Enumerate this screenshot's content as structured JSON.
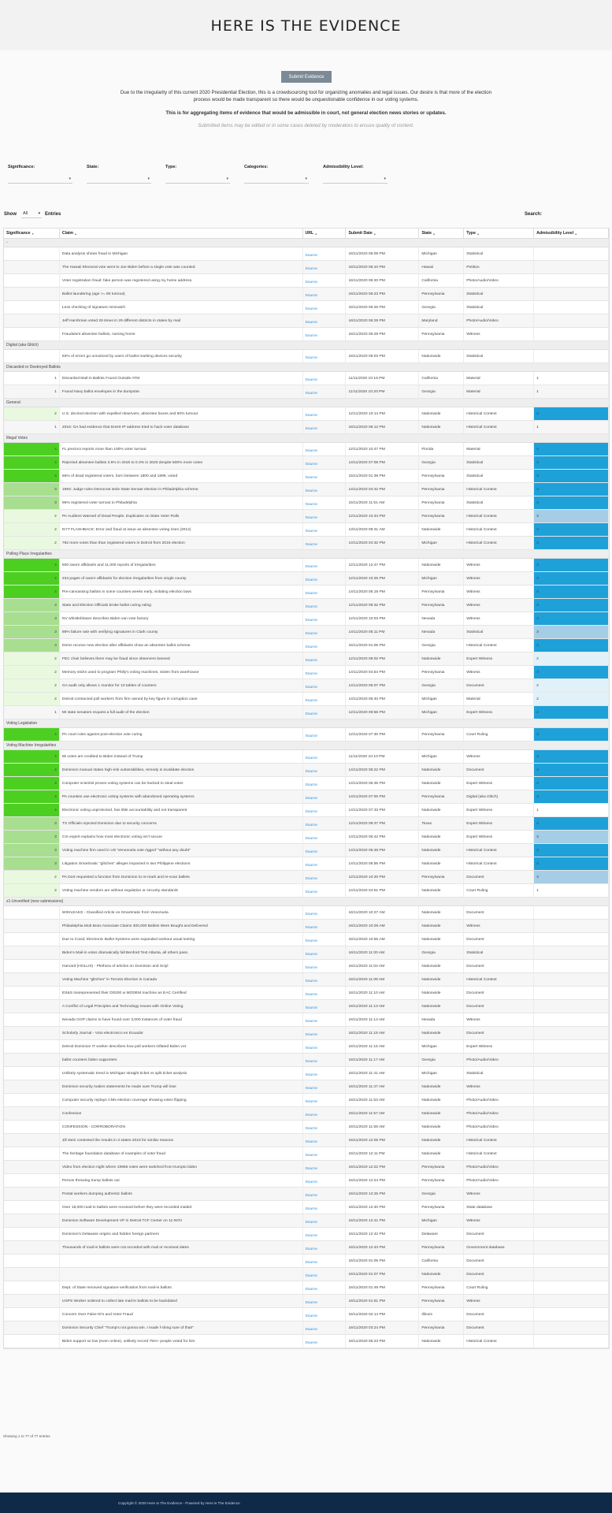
{
  "header": {
    "title": "HERE IS THE EVIDENCE",
    "submit_label": "Submit Evidence",
    "intro": "Due to the irregularity of this current 2020 Presidential Election, this is a crowdsourcing tool for organizing anomalies and legal issues. Our desire is that more of the election process would be made transparent so there would be unquestionable confidence in our voting systems.",
    "intro_bold": "This is for aggregating items of evidence that would be admissible in court, not general election news stories or updates.",
    "intro_italic": "Submitted items may be edited or in some cases deleted by moderators to ensure quality of content."
  },
  "filters": [
    {
      "label": "Significance:",
      "value": ""
    },
    {
      "label": "State:",
      "value": ""
    },
    {
      "label": "Type:",
      "value": ""
    },
    {
      "label": "Categories:",
      "value": ""
    },
    {
      "label": "Admissibility Level:",
      "value": ""
    }
  ],
  "controls": {
    "show": "Show",
    "show_value": "All",
    "entries": "Entries",
    "search": "Search:"
  },
  "columns": [
    "Significance",
    "Claim",
    "URL",
    "Submit Date",
    "State",
    "Type",
    "Admissibility Level"
  ],
  "source_label": "Source",
  "colors": {
    "level4": "#4dcf22",
    "level3": "#a8de8f",
    "level2": "#e9f9df",
    "admiss4": "#1ea0d8",
    "admiss3": "#a6cde6",
    "admiss2": "#e1f1fa"
  },
  "groups": [
    {
      "name": "-",
      "rows": [
        [
          "",
          "Data analysis shows fraud in Michigan",
          "16/11/2020 06:09 PM",
          "Michigan",
          "Statistical",
          ""
        ],
        [
          "",
          "The Hawaii Electoral vote went to Joe Biden before a single vote was counted.",
          "16/11/2020 06:10 PM",
          "Hawaii",
          "Petition",
          ""
        ],
        [
          "",
          "Voter registration fraud: fake person was registered using my home address.",
          "16/11/2020 06:20 PM",
          "California",
          "Photo/Audio/Video",
          ""
        ],
        [
          "",
          "Ballot laundering (age >= 90 turnout)",
          "16/11/2020 06:23 PM",
          "Pennsylvania",
          "Statistical",
          ""
        ],
        [
          "",
          "Less checking of signature mismatch",
          "16/11/2020 06:26 PM",
          "Georgia",
          "Statistical",
          ""
        ],
        [
          "",
          "Jeff Harshman voted 29 times in 29 different districts in states by mail",
          "16/11/2020 06:29 PM",
          "Maryland",
          "Photo/Audio/Video",
          ""
        ],
        [
          "",
          "Fraudulent absentee ballots, nursing home",
          "16/11/2020 06:29 PM",
          "Pennsylvania",
          "Witness",
          ""
        ]
      ]
    },
    {
      "name": "Digital (aka Glitch)",
      "rows": [
        [
          "",
          "93% of errors go unnoticed by users of ballot marking devices security",
          "16/11/2020 06:03 PM",
          "Nationwide",
          "Statistical",
          ""
        ]
      ]
    },
    {
      "name": "Discarded or Destroyed Ballots",
      "rows": [
        [
          "1",
          "Discarded Mail-in Ballots Found Outside ATM",
          "11/11/2020 10:16 PM",
          "California",
          "Material",
          "1"
        ],
        [
          "1",
          "Found Navy ballot envelopes in the dumpster.",
          "11/11/2020 10:20 PM",
          "Georgia",
          "Material",
          "1"
        ]
      ]
    },
    {
      "name": "General",
      "rows": [
        [
          "2",
          "U.S. decried election with expelled observers, absentee boxes and 90% turnout",
          "12/11/2020 10:14 PM",
          "Nationwide",
          "Historical Context",
          "4"
        ],
        [
          "1",
          "2016: GA had evidence that DoHS IP address tried to hack voter database",
          "16/11/2020 06:12 PM",
          "Nationwide",
          "Historical Context",
          "1"
        ]
      ]
    },
    {
      "name": "Illegal Votes",
      "rows": [
        [
          "4",
          "FL precinct reports more than 100% voter turnout",
          "12/11/2020 10:47 PM",
          "Florida",
          "Material",
          "4"
        ],
        [
          "4",
          "Rejected absentee ballots 3.5% in 2018 to 0.3% in 2020 despite 500% more votes",
          "14/11/2020 07:08 PM",
          "Georgia",
          "Statistical",
          "4"
        ],
        [
          "4",
          "66% of dead registered voters, born between 1800 and 1899, voted",
          "15/11/2020 01:38 PM",
          "Pennsylvania",
          "Statistical",
          "4"
        ],
        [
          "3",
          "1994: Judge rules Democrat stole State Senate election in Philadelphia scheme",
          "14/11/2020 04:42 PM",
          "Pennsylvania",
          "Historical Context",
          "4"
        ],
        [
          "3",
          "95% registered voter turnout in Philadelphia",
          "15/11/2020 11:51 AM",
          "Pennsylvania",
          "Statistical",
          "4"
        ],
        [
          "2",
          "PA Auditors Warned of Dead People, Duplicates on State Voter Rolls",
          "12/11/2020 10:34 PM",
          "Pennsylvania",
          "Historical Context",
          "3"
        ],
        [
          "2",
          "NYT FLASHBACK: Error and fraud at issue as absentee voting rises (2012)",
          "13/11/2020 08:31 AM",
          "Nationwide",
          "Historical Context",
          "4"
        ],
        [
          "2",
          "782 more votes than than registered voters in Detroit from 2016 election",
          "14/11/2020 04:32 PM",
          "Michigan",
          "Historical Context",
          "4"
        ]
      ]
    },
    {
      "name": "Polling Place Irregularities",
      "rows": [
        [
          "4",
          "500 sworn affidavits and 11,000 reports of irregularities",
          "12/11/2020 12:47 PM",
          "Nationwide",
          "Witness",
          "4"
        ],
        [
          "4",
          "234 pages of sworn affidavits for election irregularities from single county",
          "12/11/2020 10:26 PM",
          "Michigan",
          "Witness",
          "4"
        ],
        [
          "4",
          "Pre-canvassing ballots in some counties weeks early, violating election laws",
          "14/11/2020 05:19 PM",
          "Pennsylvania",
          "Witness",
          "4"
        ],
        [
          "3",
          "State and Election Officials broke ballot curing ruling",
          "12/11/2020 09:32 PM",
          "Pennsylvania",
          "Witness",
          "4"
        ],
        [
          "3",
          "NV whistleblower describes Biden van vote factory",
          "12/11/2020 10:03 PM",
          "Nevada",
          "Witness",
          "4"
        ],
        [
          "3",
          "89% failure rate with verifying signatures in Clark county",
          "14/11/2020 05:11 PM",
          "Nevada",
          "Statistical",
          "3"
        ],
        [
          "3",
          "Dems receive new election after affidavits show an absentee ballot scheme",
          "15/11/2020 01:06 PM",
          "Georgia",
          "Historical Context",
          "4"
        ],
        [
          "2",
          "FEC chair believes there may be fraud since observers banned",
          "12/11/2020 09:02 PM",
          "Nationwide",
          "Expert Witness",
          "2"
        ],
        [
          "2",
          "Memory sticks used to program Philly's voting machines, stolen from warehouse",
          "14/11/2020 04:54 PM",
          "Pennsylvania",
          "Witness",
          "4"
        ],
        [
          "2",
          "GA audit only allows 1 monitor for 10 tables of counters",
          "14/11/2020 05:07 PM",
          "Georgia",
          "Document",
          "2"
        ],
        [
          "2",
          "Detroit contracted poll workers from firm owned by key figure in corruption case",
          "14/11/2020 06:40 PM",
          "Michigan",
          "Material",
          "2"
        ],
        [
          "1",
          "MI state senators request a full audit of the election",
          "12/11/2020 09:56 PM",
          "Michigan",
          "Expert Witness",
          "4"
        ]
      ]
    },
    {
      "name": "Voting Legislation",
      "rows": [
        [
          "4",
          "PA court rules against post-election vote curing",
          "12/11/2020 07:30 PM",
          "Pennsylvania",
          "Court Ruling",
          "4"
        ]
      ]
    },
    {
      "name": "Voting Machine Irregularities",
      "rows": [
        [
          "4",
          "6k votes are credited to Biden instead of Trump",
          "11/11/2020 10:10 PM",
          "Michigan",
          "Witness",
          "4"
        ],
        [
          "4",
          "Dominion manual states high-risk vulnerabilities, remedy is invalidate election",
          "14/11/2020 06:22 PM",
          "Nationwide",
          "Document",
          "4"
        ],
        [
          "4",
          "Computer scientist proves voting systems can be hacked to steal votes",
          "14/11/2020 06:35 PM",
          "Nationwide",
          "Expert Witness",
          "4"
        ],
        [
          "4",
          "PA counties use electronic voting systems with abandoned operating systems",
          "14/11/2020 07:00 PM",
          "Pennsylvania",
          "Digital (aka Glitch)",
          "4"
        ],
        [
          "4",
          "Electronic voting unprotected, has little accountability and not transparent",
          "14/11/2020 07:33 PM",
          "Nationwide",
          "Expert Witness",
          "1"
        ],
        [
          "3",
          "TX Officials rejected Dominion due to security concerns",
          "12/11/2020 09:37 PM",
          "Texas",
          "Expert Witness",
          "4"
        ],
        [
          "3",
          "CIA expert explains how most electronic voting isn't secure",
          "14/11/2020 06:42 PM",
          "Nationwide",
          "Expert Witness",
          "3"
        ],
        [
          "3",
          "Voting machine firm used in US 'Venezuela vote rigged' \"without any doubt\"",
          "14/11/2020 06:48 PM",
          "Nationwide",
          "Historical Context",
          "4"
        ],
        [
          "3",
          "Litigation Smartmatic \"glitches\" alleges impacted in two Philippine elections",
          "14/11/2020 06:56 PM",
          "Nationwide",
          "Historical Context",
          "4"
        ],
        [
          "2",
          "PA DoS requested a function from Dominion to re-mark and re-scan ballets",
          "12/11/2020 10:20 PM",
          "Pennsylvania",
          "Document",
          "3"
        ],
        [
          "2",
          "Voting machine vendors are without regulation or security standards",
          "14/11/2020 04:51 PM",
          "Nationwide",
          "Court Ruling",
          "1"
        ]
      ]
    },
    {
      "name": "z1-Unverified (new submissions)",
      "rows": [
        [
          "",
          "WIKILEAKS - Classified Article on Smartmatic from Venezuela",
          "16/11/2020 10:27 AM",
          "Nationwide",
          "Document",
          ""
        ],
        [
          "",
          "Philadelphia Mob Boss Associate Claims 300,000 Ballots Were Bought and Delivered",
          "16/11/2020 10:29 AM",
          "Nationwide",
          "Witness",
          ""
        ],
        [
          "",
          "Due to Covid, Electronic Ballot Systems were expanded workout usual testing",
          "16/11/2020 10:55 AM",
          "Nationwide",
          "Document",
          ""
        ],
        [
          "",
          "Biden's Mail-in votes dramatically fall Benford Test Atlanta, all others pass.",
          "16/11/2020 11:00 AM",
          "Georgia",
          "Statistical",
          ""
        ],
        [
          "",
          "Harvard (HOLLIS) - Plethora of articles on Dominion and Sctyl",
          "16/11/2020 11:04 AM",
          "Nationwide",
          "Document",
          ""
        ],
        [
          "",
          "Voting Machine \"glitches\" in Toronto Election in Canada",
          "16/11/2020 11:08 AM",
          "Nationwide",
          "Historical Context",
          ""
        ],
        [
          "",
          "ES&S misrepresented their DS200 w MODEM machine as EAC Certified",
          "16/11/2020 11:10 AM",
          "Nationwide",
          "Document",
          ""
        ],
        [
          "",
          "A Conflict of Legal Principles and Technology Issues with Online Voting",
          "16/11/2020 11:13 AM",
          "Nationwide",
          "Document",
          ""
        ],
        [
          "",
          "Nevada GOP claims to have found over 3,000 instances of voter fraud",
          "16/11/2020 11:14 AM",
          "Nevada",
          "Witness",
          ""
        ],
        [
          "",
          "Scholarly Journal - Voto electronico en Ecuador",
          "16/11/2020 11:15 AM",
          "Nationwide",
          "Document",
          ""
        ],
        [
          "",
          "Detroit Dominion IT worker describes how poll workers inflated Biden vot",
          "16/11/2020 11:15 AM",
          "Michigan",
          "Expert Witness",
          ""
        ],
        [
          "",
          "ballot counters biden supporters",
          "16/11/2020 11:17 AM",
          "Georgia",
          "Photo/Audio/Video",
          ""
        ],
        [
          "",
          "Unlikely systematic trend in Michigan straight ticket vs split ticket analysis",
          "16/11/2020 11:41 AM",
          "Michigan",
          "Statistical",
          ""
        ],
        [
          "",
          "Dominion security makes statements he made sure Trump will lose",
          "16/11/2020 11:47 AM",
          "Nationwide",
          "Witness",
          ""
        ],
        [
          "",
          "Computer security replays CNN election coverage showing votes flipping",
          "16/11/2020 11:53 AM",
          "Nationwide",
          "Photo/Audio/Video",
          ""
        ],
        [
          "",
          "Confession",
          "16/11/2020 11:57 AM",
          "Nationwide",
          "Photo/Audio/Video",
          ""
        ],
        [
          "",
          "CONFESSION - CORROBORATION",
          "16/11/2020 11:58 AM",
          "Nationwide",
          "Photo/Audio/Video",
          ""
        ],
        [
          "",
          "Jill stein contested the results in 3 states 2016 for similar reasons",
          "16/11/2020 12:06 PM",
          "Nationwide",
          "Historical Context",
          ""
        ],
        [
          "",
          "The heritage foundation database of examples of voter fraud",
          "16/11/2020 12:11 PM",
          "Nationwide",
          "Historical Context",
          ""
        ],
        [
          "",
          "Video from election night where 19965 votes were switched from trumpto biden",
          "16/11/2020 12:22 PM",
          "Pennsylvania",
          "Photo/Audio/Video",
          ""
        ],
        [
          "",
          "Person throwing trump ballots out",
          "16/11/2020 12:24 PM",
          "Pennsylvania",
          "Photo/Audio/Video",
          ""
        ],
        [
          "",
          "Postal workers dumping authentic ballots",
          "16/11/2020 12:25 PM",
          "Georgia",
          "Witness",
          ""
        ],
        [
          "",
          "Over 18,000 mail-in ballots were received before they were recorded mailed",
          "16/11/2020 12:40 PM",
          "Pennsylvania",
          "State database",
          ""
        ],
        [
          "",
          "Dominion Software Development VP in Detroit TCF Center on 11-NOV",
          "16/11/2020 12:41 PM",
          "Michigan",
          "Witness",
          ""
        ],
        [
          "",
          "Dominion's Delaware origins and hidden foreign partners",
          "16/11/2020 12:42 PM",
          "Delaware",
          "Document",
          ""
        ],
        [
          "",
          "Thousands of mail-in ballots were not recorded with mail or received dates",
          "16/11/2020 12:43 PM",
          "Pennsylvania",
          "Government database",
          ""
        ],
        [
          "",
          "",
          "16/11/2020 01:05 PM",
          "California",
          "Document",
          ""
        ],
        [
          "",
          "",
          "16/11/2020 01:07 PM",
          "Nationwide",
          "Document",
          ""
        ],
        [
          "",
          "Dept. of State removed signature verification from mail-in ballots",
          "16/11/2020 01:49 PM",
          "Pennsylvania",
          "Court Ruling",
          ""
        ],
        [
          "",
          "USPS Worker ordered to collect late mail-in ballots to be backdated",
          "16/11/2020 01:51 PM",
          "Pennsylvania",
          "Witness",
          ""
        ],
        [
          "",
          "Concern Over False ID's and Voter Fraud",
          "16/11/2020 02:14 PM",
          "Illinois",
          "Document",
          ""
        ],
        [
          "",
          "Dominion Security Chief \"Trump's not gonna win. I made f-cking sure of that!\"",
          "16/11/2020 03:24 PM",
          "Pennsylvania",
          "Document",
          ""
        ],
        [
          "",
          "Biden support so low (even online), unlikely record 75m+ people voted for him",
          "16/11/2020 05:23 PM",
          "Nationwide",
          "Historical Context",
          ""
        ]
      ]
    }
  ],
  "showing": "Showing 1 to 77 of 77 entries",
  "footer": "Copyright © 2020 Here Is The Evidence - Powered by Here is The Evidence"
}
